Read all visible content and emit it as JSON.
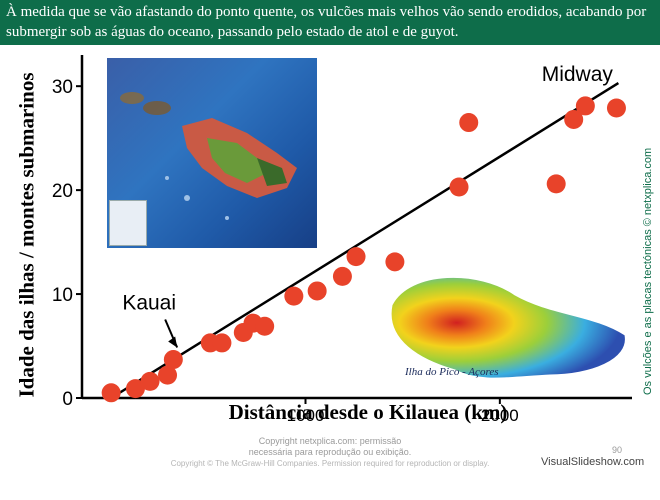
{
  "slide": {
    "caption": "À medida que se vão afastando do ponto quente, os vulcões mais velhos vão sendo erodidos, acabando por submergir sob as águas do oceano, passando pelo estado de atol e de guyot.",
    "side_text": "Os vulcões e as placas tectónicas © netxplica.com",
    "copyright_line1": "Copyright netxplica.com: permissão",
    "copyright_line2": "necessária para reprodução ou exibição.",
    "copyright_line3": "Copyright © The McGraw-Hill Companies. Permission required for reproduction or display.",
    "page_number": "90",
    "brand": "VisualSlideshow.com",
    "photo_label": "Ilha do Pico - Açores"
  },
  "chart_data": {
    "type": "scatter",
    "xlabel": "Distância desde o Kilauea (km)",
    "ylabel": "Idade das ilhas / montes submarinos",
    "xlim": [
      -150,
      2680
    ],
    "ylim": [
      0,
      33
    ],
    "xticks": [
      1000,
      2000
    ],
    "yticks": [
      0,
      10,
      20,
      30
    ],
    "annotations": [
      {
        "text": "Kauai",
        "x": 350,
        "y": 3.7
      },
      {
        "text": "Midway",
        "x": 2450,
        "y": 30.5
      }
    ],
    "trendline": [
      [
        0,
        0
      ],
      [
        2610,
        30.3
      ]
    ],
    "points": [
      {
        "x": 0,
        "y": 0.5
      },
      {
        "x": 125,
        "y": 0.9
      },
      {
        "x": 200,
        "y": 1.6
      },
      {
        "x": 290,
        "y": 2.2
      },
      {
        "x": 320,
        "y": 3.7
      },
      {
        "x": 510,
        "y": 5.3
      },
      {
        "x": 570,
        "y": 5.3
      },
      {
        "x": 680,
        "y": 6.3
      },
      {
        "x": 730,
        "y": 7.2
      },
      {
        "x": 790,
        "y": 6.9
      },
      {
        "x": 940,
        "y": 9.8
      },
      {
        "x": 1060,
        "y": 10.3
      },
      {
        "x": 1190,
        "y": 11.7
      },
      {
        "x": 1260,
        "y": 13.6
      },
      {
        "x": 1460,
        "y": 13.1
      },
      {
        "x": 1790,
        "y": 20.3
      },
      {
        "x": 1840,
        "y": 26.5
      },
      {
        "x": 2290,
        "y": 20.6
      },
      {
        "x": 2380,
        "y": 26.8
      },
      {
        "x": 2440,
        "y": 28.1
      },
      {
        "x": 2600,
        "y": 27.9
      }
    ]
  }
}
